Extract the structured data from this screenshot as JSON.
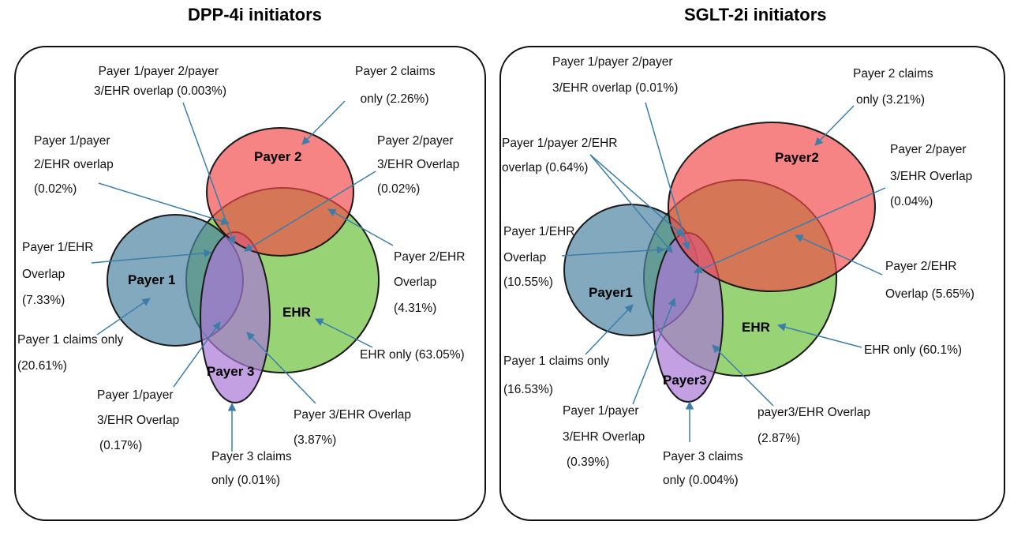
{
  "panels": [
    {
      "title": "DPP-4i initiators",
      "sets": {
        "payer1": "Payer 1",
        "payer2": "Payer 2",
        "payer3": "Payer 3",
        "ehr": "EHR"
      },
      "labels": {
        "all_overlap": [
          "Payer 1/payer 2/payer",
          "3/EHR overlap (0.003%)"
        ],
        "payer2_only": [
          "Payer 2 claims",
          "only (2.26%)"
        ],
        "p1_p2_ehr": [
          "Payer 1/payer",
          "2/EHR overlap",
          "(0.02%)"
        ],
        "p2_p3_ehr": [
          "Payer 2/payer",
          "3/EHR Overlap",
          "(0.02%)"
        ],
        "p1_ehr": [
          "Payer 1/EHR",
          "Overlap",
          "(7.33%)"
        ],
        "p2_ehr": [
          "Payer 2/EHR",
          "Overlap",
          "(4.31%)"
        ],
        "payer1_only": [
          "Payer 1 claims only",
          "(20.61%)"
        ],
        "ehr_only": [
          "EHR only (63.05%)"
        ],
        "p1_p3_ehr": [
          "Payer 1/payer",
          "3/EHR Overlap",
          "(0.17%)"
        ],
        "p3_ehr": [
          "Payer 3/EHR Overlap",
          "(3.87%)"
        ],
        "payer3_only": [
          "Payer 3 claims",
          "only (0.01%)"
        ]
      }
    },
    {
      "title": "SGLT-2i initiators",
      "sets": {
        "payer1": "Payer1",
        "payer2": "Payer2",
        "payer3": "Payer3",
        "ehr": "EHR"
      },
      "labels": {
        "all_overlap": [
          "Payer 1/payer 2/payer",
          "3/EHR overlap (0.01%)"
        ],
        "payer2_only": [
          "Payer 2 claims",
          "only (3.21%)"
        ],
        "p1_p2_ehr": [
          "Payer 1/payer 2/EHR",
          "overlap (0.64%)"
        ],
        "p2_p3_ehr": [
          "Payer 2/payer",
          "3/EHR Overlap",
          "(0.04%)"
        ],
        "p1_ehr": [
          "Payer 1/EHR",
          "Overlap",
          "(10.55%)"
        ],
        "p2_ehr": [
          "Payer 2/EHR",
          "Overlap (5.65%)"
        ],
        "payer1_only": [
          "Payer 1 claims only",
          "(16.53%)"
        ],
        "ehr_only": [
          "EHR only (60.1%)"
        ],
        "p1_p3_ehr": [
          "Payer 1/payer",
          "3/EHR Overlap",
          "(0.39%)"
        ],
        "p3_ehr": [
          "payer3/EHR Overlap",
          "(2.87%)"
        ],
        "payer3_only": [
          "Payer 3 claims",
          "only (0.004%)"
        ]
      }
    }
  ],
  "colors": {
    "payer1": "#4f84a3",
    "payer2": "#f24a4a",
    "payer3": "#a877d6",
    "ehr": "#6cc13a",
    "leader": "#3c7ea8"
  }
}
